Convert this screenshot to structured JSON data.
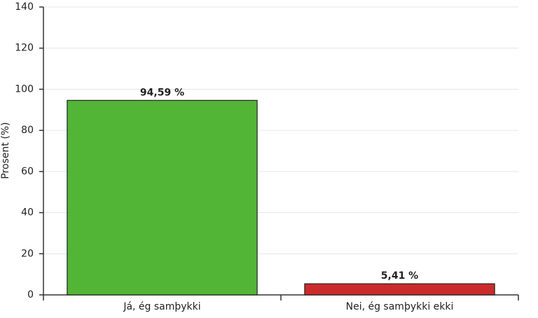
{
  "chart_data": {
    "type": "bar",
    "y_label": "Prosent (%)",
    "categories": [
      "Já, ég samþykki",
      "Nei, ég samþykki ekki"
    ],
    "values": [
      94.59,
      5.41
    ],
    "value_labels": [
      "94,59 %",
      "5,41 %"
    ],
    "colors": [
      "#52b535",
      "#cc2b2b"
    ],
    "ylim": [
      0,
      140
    ],
    "yticks": [
      0,
      20,
      40,
      60,
      80,
      100,
      120,
      140
    ],
    "grid": true
  }
}
